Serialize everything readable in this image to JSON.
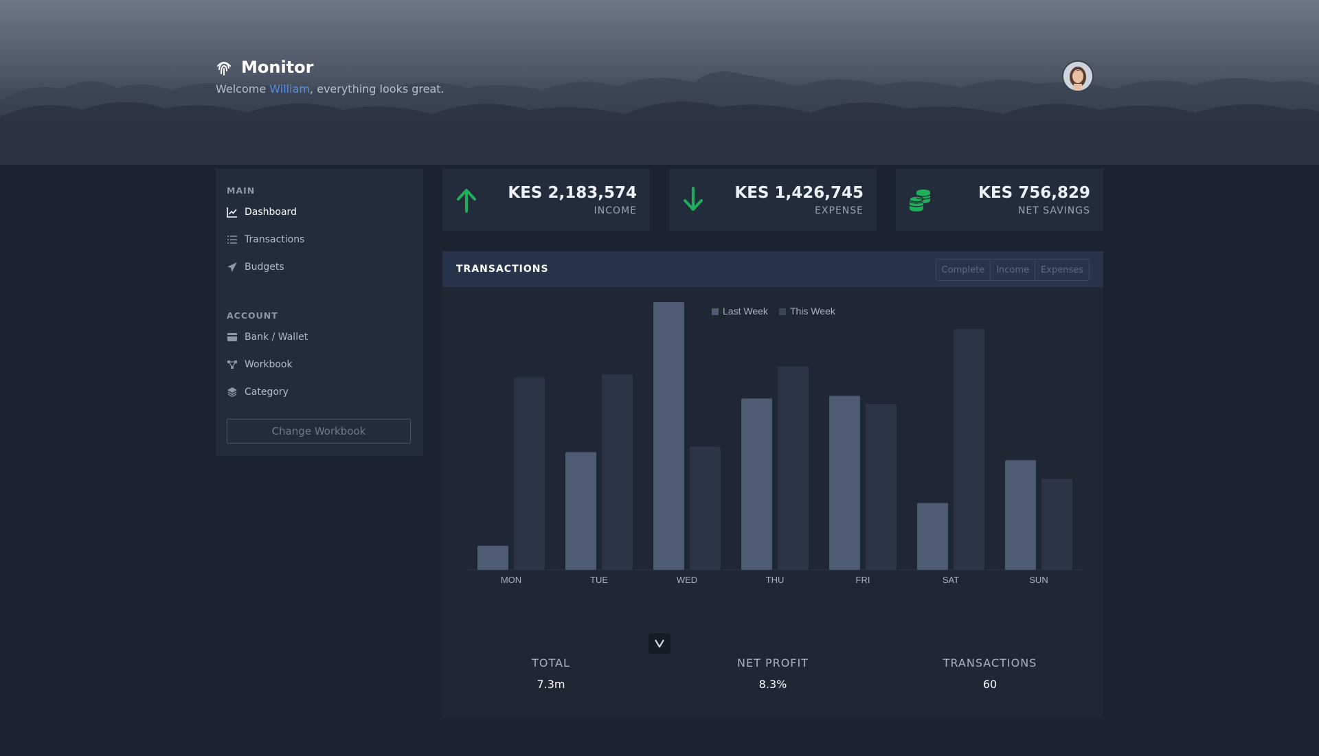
{
  "header": {
    "app_title": "Monitor",
    "welcome_prefix": "Welcome ",
    "user_name": "William",
    "welcome_suffix": ", everything looks great."
  },
  "sidebar": {
    "main_title": "MAIN",
    "main_items": [
      {
        "label": "Dashboard",
        "icon": "line-chart-icon",
        "active": true
      },
      {
        "label": "Transactions",
        "icon": "list-icon"
      },
      {
        "label": "Budgets",
        "icon": "paper-plane-icon"
      }
    ],
    "account_title": "ACCOUNT",
    "account_items": [
      {
        "label": "Bank / Wallet",
        "icon": "wallet-icon"
      },
      {
        "label": "Workbook",
        "icon": "share-nodes-icon"
      },
      {
        "label": "Category",
        "icon": "layers-icon"
      }
    ],
    "change_workbook_label": "Change Workbook"
  },
  "stats": [
    {
      "value": "KES 2,183,574",
      "label": "INCOME",
      "icon": "arrow-up-icon",
      "color": "#1fae5b"
    },
    {
      "value": "KES 1,426,745",
      "label": "EXPENSE",
      "icon": "arrow-down-icon",
      "color": "#1fae5b"
    },
    {
      "value": "KES 756,829",
      "label": "NET SAVINGS",
      "icon": "coins-icon",
      "color": "#1fae5b"
    }
  ],
  "transactions_panel": {
    "title": "TRANSACTIONS",
    "filters": [
      "Complete",
      "Income",
      "Expenses"
    ]
  },
  "chart_data": {
    "type": "bar",
    "categories": [
      "MON",
      "TUE",
      "WED",
      "THU",
      "FRI",
      "SAT",
      "SUN"
    ],
    "series": [
      {
        "name": "Last Week",
        "color": "#4d5b73",
        "values": [
          9,
          44,
          100,
          64,
          65,
          25,
          41
        ]
      },
      {
        "name": "This Week",
        "color": "#2b3546",
        "values": [
          72,
          73,
          46,
          76,
          62,
          90,
          34
        ]
      }
    ],
    "ylim": [
      0,
      100
    ],
    "grid": false,
    "legend": "top-center"
  },
  "summary": [
    {
      "label": "TOTAL",
      "value": "7.3m"
    },
    {
      "label": "NET PROFIT",
      "value": "8.3%"
    },
    {
      "label": "TRANSACTIONS",
      "value": "60"
    }
  ]
}
